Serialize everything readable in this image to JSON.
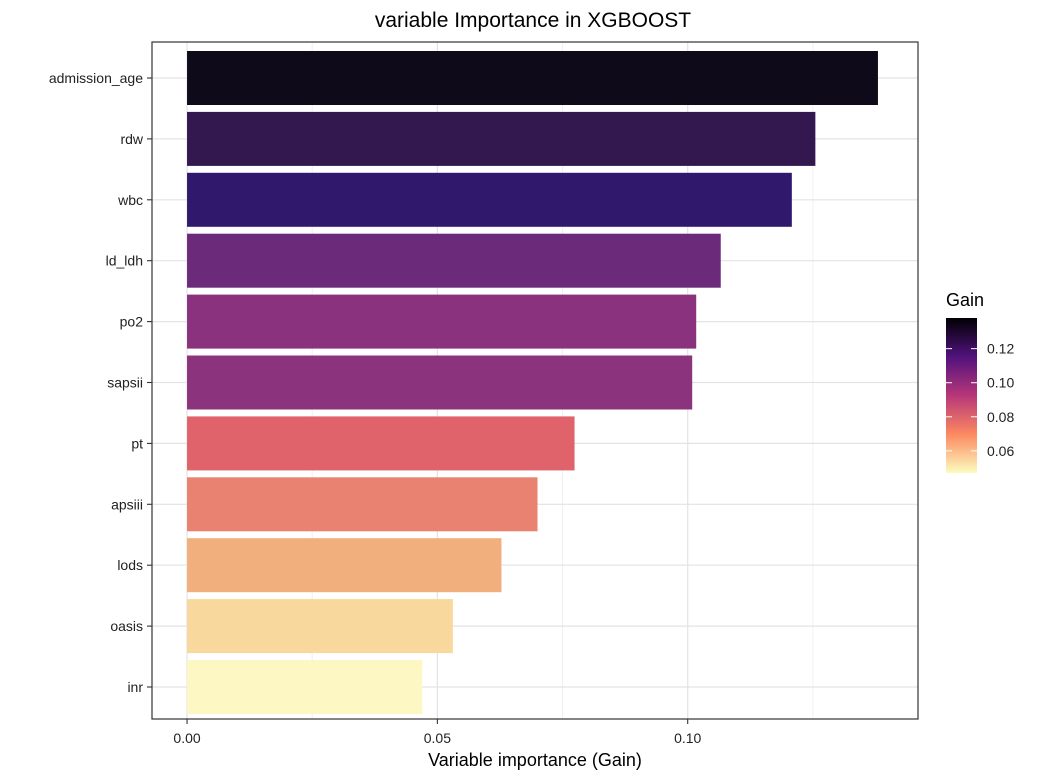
{
  "chart_data": {
    "type": "bar",
    "orientation": "horizontal",
    "title": "variable Importance in XGBOOST",
    "xlabel": "Variable importance (Gain)",
    "ylabel": "",
    "xlim": [
      -0.007,
      0.146
    ],
    "x_ticks": [
      0.0,
      0.05,
      0.1
    ],
    "x_tick_labels": [
      "0.00",
      "0.05",
      "0.10"
    ],
    "grid": true,
    "categories": [
      "admission_age",
      "rdw",
      "wbc",
      "ld_ldh",
      "po2",
      "sapsii",
      "pt",
      "apsiii",
      "lods",
      "oasis",
      "inr"
    ],
    "values": [
      0.138,
      0.1255,
      0.1208,
      0.1066,
      0.1017,
      0.1009,
      0.0774,
      0.07,
      0.0628,
      0.0531,
      0.047
    ],
    "colors": [
      "#0f0a19",
      "#33174f",
      "#30196d",
      "#6b2a7a",
      "#8a327e",
      "#8b337d",
      "#e0636c",
      "#ea8271",
      "#f2af7e",
      "#f9d89d",
      "#fcf7c3"
    ],
    "legend": {
      "title": "Gain",
      "position": "right",
      "ticks": [
        "0.12",
        "0.10",
        "0.08",
        "0.06"
      ],
      "tick_values": [
        0.12,
        0.1,
        0.08,
        0.06
      ],
      "range": [
        0.047,
        0.138
      ],
      "gradient": [
        "#fcfdbf",
        "#fc8961",
        "#b73779",
        "#51127c",
        "#000004"
      ]
    }
  }
}
